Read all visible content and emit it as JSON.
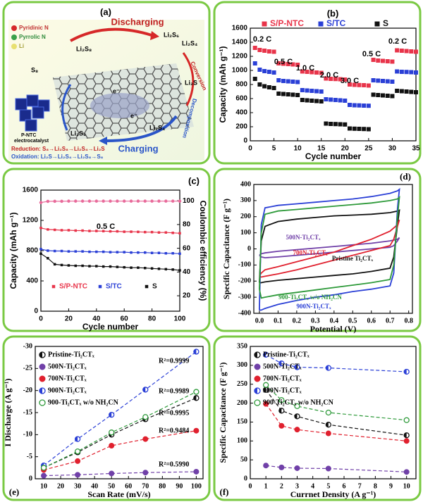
{
  "schematic": {
    "panel_label": "(a)",
    "legend": [
      "Pyridinic N",
      "Pyrrolic N",
      "Li"
    ],
    "discharging": "Discharging",
    "charging": "Charging",
    "species": [
      "S₈",
      "Li₂S₈",
      "Li₂S₆",
      "Li₂S₄",
      "Li₂S",
      "Li₂S₆",
      "Li₂S₄"
    ],
    "conversion": "Conversion",
    "decomposition": "Decomposition",
    "electron": "e⁻",
    "catalyst": [
      "P-NTC",
      "electrocatalyst"
    ],
    "reduction": "Reduction: S₈→Li₂S₈→Li₂S₄→Li₂S",
    "oxidation": "Oxidation: Li₂S→Li₂S₄→Li₂S₈→S₈"
  },
  "chart_data": [
    {
      "type": "scatter",
      "panel_label": "(b)",
      "x_label": "Cycle number",
      "y_label": "Capacity (mAh g⁻¹)",
      "x": [
        1,
        2,
        3,
        4,
        5,
        6,
        7,
        8,
        9,
        10,
        11,
        12,
        13,
        14,
        15,
        16,
        17,
        18,
        19,
        20,
        21,
        22,
        23,
        24,
        25,
        26,
        27,
        28,
        29,
        30,
        31,
        32,
        33,
        34,
        35
      ],
      "xlim": [
        0,
        35
      ],
      "xticks": [
        0,
        5,
        10,
        15,
        20,
        25,
        30,
        35
      ],
      "ylim": [
        0,
        1600
      ],
      "yticks": [
        0,
        200,
        400,
        600,
        800,
        1000,
        1200,
        1400,
        1600
      ],
      "legend": "top",
      "annotations": [
        "0.2 C",
        "0.5 C",
        "1.0 C",
        "2.0 C",
        "3.0 C",
        "0.5 C",
        "0.2 C"
      ],
      "series": [
        {
          "name": "S/P-NTC",
          "color": "#e8344a",
          "marker": "square",
          "values": [
            1320,
            1290,
            1280,
            1270,
            1265,
            1100,
            1095,
            1090,
            1085,
            1080,
            985,
            980,
            975,
            970,
            965,
            885,
            880,
            878,
            875,
            870,
            800,
            795,
            792,
            790,
            785,
            1150,
            1140,
            1135,
            1130,
            1125,
            1285,
            1280,
            1275,
            1270,
            1265
          ]
        },
        {
          "name": "S/TC",
          "color": "#2a3fd6",
          "marker": "square",
          "values": [
            1100,
            1010,
            990,
            980,
            970,
            860,
            850,
            845,
            840,
            835,
            720,
            715,
            710,
            705,
            700,
            590,
            585,
            580,
            575,
            570,
            510,
            505,
            503,
            500,
            498,
            860,
            855,
            850,
            845,
            840,
            985,
            980,
            978,
            975,
            970
          ]
        },
        {
          "name": "S",
          "color": "#111111",
          "marker": "square",
          "values": [
            880,
            800,
            775,
            760,
            750,
            670,
            665,
            660,
            655,
            650,
            580,
            575,
            570,
            565,
            560,
            245,
            240,
            238,
            235,
            232,
            175,
            172,
            170,
            168,
            165,
            655,
            650,
            645,
            640,
            635,
            710,
            705,
            700,
            695,
            690
          ]
        }
      ]
    },
    {
      "type": "line",
      "panel_label": "(c)",
      "x_label": "Cycle number",
      "y_label": "Capacity (mAh g⁻¹)",
      "y2_label": "Coulombic efficiency (%)",
      "x": [
        0,
        5,
        10,
        15,
        20,
        25,
        30,
        35,
        40,
        45,
        50,
        55,
        60,
        65,
        70,
        75,
        80,
        85,
        90,
        95,
        100
      ],
      "xlim": [
        0,
        100
      ],
      "xticks": [
        0,
        20,
        40,
        60,
        80,
        100
      ],
      "ylim": [
        0,
        1600
      ],
      "yticks": [
        0,
        400,
        800,
        1200,
        1600
      ],
      "y2lim": [
        7,
        109
      ],
      "y2ticks": [
        20,
        40,
        60,
        80,
        100
      ],
      "legend": "bottom",
      "annotations": [
        "0.5 C"
      ],
      "series": [
        {
          "name": "S/P-NTC",
          "color": "#e8344a",
          "marker": "square",
          "line": "solid",
          "values": [
            1100,
            1080,
            1075,
            1070,
            1070,
            1065,
            1065,
            1060,
            1060,
            1058,
            1055,
            1055,
            1050,
            1050,
            1048,
            1045,
            1045,
            1040,
            1040,
            1035,
            1030
          ]
        },
        {
          "name": "S/TC",
          "color": "#2a3fd6",
          "marker": "square",
          "line": "solid",
          "values": [
            820,
            800,
            795,
            795,
            790,
            790,
            790,
            785,
            785,
            785,
            780,
            780,
            780,
            775,
            775,
            775,
            770,
            770,
            765,
            765,
            760
          ]
        },
        {
          "name": "S",
          "color": "#111111",
          "marker": "square",
          "line": "solid",
          "values": [
            760,
            700,
            620,
            610,
            605,
            600,
            600,
            595,
            595,
            590,
            590,
            585,
            580,
            575,
            575,
            570,
            565,
            560,
            555,
            550,
            540
          ]
        },
        {
          "color": "#e86a9a",
          "marker": "circle",
          "line": "solid",
          "axis": "y2",
          "values": [
            98.5,
            99.5,
            99.6,
            99.6,
            99.7,
            99.7,
            99.7,
            99.7,
            99.7,
            99.7,
            99.7,
            99.7,
            99.7,
            99.7,
            99.7,
            99.7,
            99.7,
            99.7,
            99.7,
            99.7,
            99.7
          ]
        }
      ]
    },
    {
      "type": "line",
      "panel_label": "(d)",
      "x_label": "Potential (V)",
      "y_label": "Specific Capacitance (F g⁻¹)",
      "x": [
        0,
        0.01,
        0.03,
        0.1,
        0.2,
        0.3,
        0.4,
        0.5,
        0.6,
        0.7,
        0.74,
        0.75,
        0.74,
        0.72,
        0.7,
        0.6,
        0.5,
        0.4,
        0.3,
        0.2,
        0.1,
        0.03,
        0.01,
        0
      ],
      "xlim": [
        -0.03,
        0.82
      ],
      "xticks": [
        {
          "value": 0,
          "label": "0.0"
        },
        0.1,
        0.2,
        0.3,
        0.4,
        0.5,
        0.6,
        0.7,
        0.8
      ],
      "ylim": [
        -400,
        400
      ],
      "yticks": [
        -400,
        -300,
        -200,
        -100,
        0,
        100,
        200,
        300,
        400
      ],
      "legend": "inline",
      "series": [
        {
          "name": "Pristine Ti₂CTₓ",
          "color": "#111111",
          "line": "solid",
          "values": [
            -210,
            50,
            140,
            170,
            185,
            195,
            205,
            210,
            215,
            225,
            235,
            240,
            150,
            -50,
            -120,
            -140,
            -155,
            -165,
            -175,
            -185,
            -195,
            -205,
            -210,
            -210
          ]
        },
        {
          "name": "500N-Ti₂CTₓ",
          "color": "#7040a8",
          "line": "solid",
          "values": [
            -40,
            -30,
            -25,
            -15,
            -5,
            5,
            15,
            25,
            35,
            50,
            60,
            70,
            50,
            20,
            10,
            0,
            -10,
            -20,
            -30,
            -40,
            -50,
            -55,
            -50,
            -40
          ]
        },
        {
          "name": "700N-Ti₂CTₓ",
          "color": "#e0202e",
          "line": "solid",
          "values": [
            -170,
            -150,
            -130,
            -110,
            -80,
            -50,
            -20,
            20,
            60,
            110,
            150,
            180,
            140,
            60,
            20,
            -10,
            -40,
            -70,
            -100,
            -130,
            -155,
            -170,
            -175,
            -170
          ]
        },
        {
          "name": "900N-Ti₂CTₓ",
          "color": "#2a3fd6",
          "line": "solid",
          "values": [
            -380,
            150,
            255,
            270,
            280,
            290,
            300,
            310,
            325,
            345,
            360,
            370,
            250,
            -150,
            -230,
            -250,
            -265,
            -285,
            -300,
            -320,
            -345,
            -370,
            -380,
            -380
          ]
        },
        {
          "name": "900-Ti₂CTₓ w/o NH₂CN",
          "color": "#2e9a3a",
          "line": "solid",
          "values": [
            -250,
            100,
            215,
            235,
            245,
            255,
            265,
            275,
            285,
            300,
            310,
            320,
            200,
            -100,
            -190,
            -210,
            -225,
            -240,
            -255,
            -270,
            -285,
            -300,
            -305,
            -250
          ]
        }
      ]
    },
    {
      "type": "scatter",
      "panel_label": "(e)",
      "x_label": "Scan Rate (mV/s)",
      "y_label": "I Discharge (A g⁻¹)",
      "x": [
        10,
        30,
        50,
        70,
        100
      ],
      "xlim": [
        5,
        104
      ],
      "xticks": [
        10,
        20,
        30,
        40,
        50,
        60,
        70,
        80,
        90,
        100
      ],
      "ylim": [
        0,
        -30
      ],
      "yticks": [
        -30,
        -25,
        -20,
        -15,
        -10,
        -5,
        0
      ],
      "legend": "upper left",
      "series": [
        {
          "name": "Pristine-Ti₂CTₓ",
          "color": "#111111",
          "marker": "half",
          "line": "dashed",
          "fit_label": "R²=0.9995",
          "values": [
            -2.5,
            -6,
            -10,
            -13.5,
            -18.3
          ]
        },
        {
          "name": "500N-Ti₂CTₓ",
          "color": "#7040a8",
          "marker": "filled",
          "line": "dashed",
          "fit_label": "R²=0.5990",
          "values": [
            -0.7,
            -0.9,
            -1.2,
            -1.4,
            -1.6
          ]
        },
        {
          "name": "700N-Ti₂CTₓ",
          "color": "#e0202e",
          "marker": "filled",
          "line": "dashed",
          "fit_label": "R²=0.9484",
          "values": [
            -2,
            -4,
            -7.5,
            -9,
            -10.9
          ]
        },
        {
          "name": "900N-Ti₂CTₓ",
          "color": "#2a3fd6",
          "marker": "half",
          "line": "dashed",
          "fit_label": "R²=0.9999",
          "values": [
            -3,
            -9,
            -14.5,
            -20.2,
            -28.8
          ]
        },
        {
          "name": "900-Ti₂CTₓ w/o NH₂CN",
          "color": "#2e9a3a",
          "marker": "hollow",
          "line": "dashed",
          "fit_label": "R²=0.9989",
          "values": [
            -2.5,
            -6.2,
            -10.5,
            -14,
            -19.7
          ]
        }
      ]
    },
    {
      "type": "line",
      "panel_label": "(f)",
      "x_label": "Currnet Density (A g⁻¹)",
      "y_label": "Specific Capacitance (F g⁻¹)",
      "x": [
        1,
        2,
        3,
        5,
        10
      ],
      "xlim": [
        0,
        10.6
      ],
      "xticks": [
        0,
        1,
        2,
        3,
        4,
        5,
        6,
        7,
        8,
        9,
        10
      ],
      "ylim": [
        0,
        350
      ],
      "yticks": [
        0,
        50,
        100,
        150,
        200,
        250,
        300,
        350
      ],
      "legend": "upper left",
      "series": [
        {
          "name": "Pristine-Ti₂CTₓ",
          "color": "#111111",
          "marker": "half",
          "line": "dashed",
          "values": [
            235,
            180,
            165,
            143,
            115
          ]
        },
        {
          "name": "500N-Ti₂CTₓ",
          "color": "#7040a8",
          "marker": "filled",
          "line": "dashed",
          "values": [
            35,
            30,
            28,
            27,
            18
          ]
        },
        {
          "name": "700N-Ti₂CTₓ",
          "color": "#e0202e",
          "marker": "filled",
          "line": "dashed",
          "values": [
            198,
            140,
            130,
            120,
            100
          ]
        },
        {
          "name": "900N-Ti₂CTₓ",
          "color": "#2a3fd6",
          "marker": "half",
          "line": "dashed",
          "values": [
            328,
            305,
            295,
            293,
            283
          ]
        },
        {
          "name": "900-Ti₂CTₓ w/o NH₂CN",
          "color": "#2e9a3a",
          "marker": "hollow",
          "line": "dashed",
          "values": [
            248,
            208,
            192,
            175,
            155
          ]
        }
      ]
    }
  ]
}
